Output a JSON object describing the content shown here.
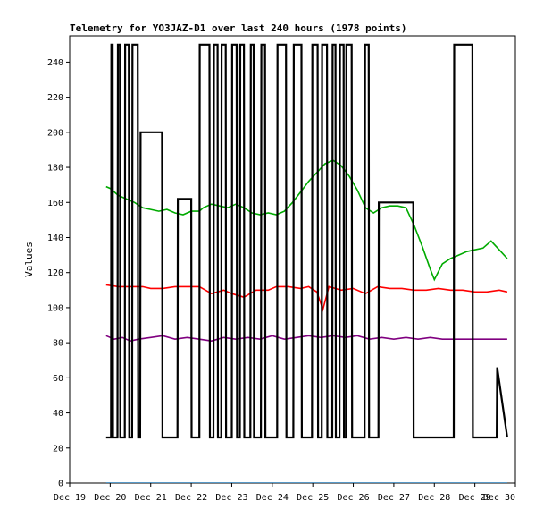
{
  "chart_data": {
    "type": "line",
    "title": "Telemetry for YO3JAZ-D1 over last 240 hours (1978 points)",
    "xlabel": "",
    "ylabel": "Values",
    "ylim": [
      0,
      255
    ],
    "grid": false,
    "legend": "none",
    "x_tick_labels": [
      "Dec 19",
      "Dec 20",
      "Dec 21",
      "Dec 22",
      "Dec 23",
      "Dec 24",
      "Dec 25",
      "Dec 26",
      "Dec 27",
      "Dec 28",
      "Dec 29",
      "Dec 30"
    ],
    "y_ticks": [
      0,
      20,
      40,
      60,
      80,
      100,
      120,
      140,
      160,
      180,
      200,
      220,
      240
    ],
    "series": [
      {
        "color": "#00aa00",
        "x": [
          19.9,
          20.0,
          20.1,
          20.2,
          20.4,
          20.6,
          20.8,
          21.0,
          21.2,
          21.4,
          21.6,
          21.8,
          22.0,
          22.2,
          22.3,
          22.5,
          22.7,
          22.9,
          23.1,
          23.3,
          23.5,
          23.7,
          23.9,
          24.1,
          24.3,
          24.5,
          24.7,
          24.9,
          25.1,
          25.3,
          25.5,
          25.7,
          25.9,
          26.1,
          26.3,
          26.5,
          26.7,
          26.9,
          27.1,
          27.3,
          27.5,
          27.7,
          27.9,
          28.0,
          28.2,
          28.4,
          28.6,
          28.8,
          29.0,
          29.2,
          29.4,
          29.6,
          29.8
        ],
        "values": [
          169,
          168,
          166,
          164,
          162,
          160,
          157,
          156,
          155,
          156,
          154,
          153,
          155,
          155,
          157,
          159,
          158,
          157,
          159,
          157,
          154,
          153,
          154,
          153,
          155,
          160,
          166,
          172,
          177,
          182,
          184,
          181,
          175,
          167,
          157,
          154,
          157,
          158,
          158,
          157,
          147,
          135,
          122,
          116,
          125,
          128,
          130,
          132,
          133,
          134,
          138,
          133,
          128
        ]
      },
      {
        "color": "#ff0000",
        "x": [
          19.9,
          20.2,
          20.5,
          20.8,
          21.0,
          21.3,
          21.6,
          21.9,
          22.2,
          22.5,
          22.8,
          23.0,
          23.3,
          23.6,
          23.9,
          24.1,
          24.4,
          24.7,
          24.9,
          25.1,
          25.25,
          25.4,
          25.7,
          26.0,
          26.3,
          26.6,
          26.9,
          27.2,
          27.5,
          27.8,
          28.1,
          28.4,
          28.7,
          29.0,
          29.3,
          29.6,
          29.8
        ],
        "values": [
          113,
          112,
          112,
          112,
          111,
          111,
          112,
          112,
          112,
          108,
          110,
          108,
          106,
          110,
          110,
          112,
          112,
          111,
          112,
          109,
          99,
          112,
          110,
          111,
          108,
          112,
          111,
          111,
          110,
          110,
          111,
          110,
          110,
          109,
          109,
          110,
          109
        ]
      },
      {
        "color": "#800080",
        "x": [
          19.9,
          20.1,
          20.3,
          20.5,
          20.7,
          21.0,
          21.3,
          21.6,
          21.9,
          22.2,
          22.5,
          22.8,
          23.1,
          23.4,
          23.7,
          24.0,
          24.3,
          24.6,
          24.9,
          25.2,
          25.5,
          25.8,
          26.1,
          26.4,
          26.7,
          27.0,
          27.3,
          27.6,
          27.9,
          28.2,
          28.5,
          28.8,
          29.1,
          29.4,
          29.8
        ],
        "values": [
          84,
          82,
          83,
          81,
          82,
          83,
          84,
          82,
          83,
          82,
          81,
          83,
          82,
          83,
          82,
          84,
          82,
          83,
          84,
          83,
          84,
          83,
          84,
          82,
          83,
          82,
          83,
          82,
          83,
          82,
          82,
          82,
          82,
          82,
          82
        ]
      },
      {
        "color": "#000000",
        "x": [
          19.9,
          20.02,
          20.03,
          20.06,
          20.07,
          20.18,
          20.19,
          20.24,
          20.25,
          20.36,
          20.37,
          20.46,
          20.47,
          20.54,
          20.55,
          20.68,
          20.69,
          20.74,
          20.75,
          21.28,
          21.29,
          21.66,
          21.67,
          22.0,
          22.01,
          22.2,
          22.21,
          22.45,
          22.46,
          22.55,
          22.56,
          22.65,
          22.66,
          22.74,
          22.75,
          22.85,
          22.86,
          23.0,
          23.01,
          23.12,
          23.13,
          23.2,
          23.21,
          23.3,
          23.31,
          23.46,
          23.47,
          23.54,
          23.55,
          23.72,
          23.73,
          23.82,
          23.83,
          24.12,
          24.13,
          24.34,
          24.35,
          24.52,
          24.53,
          24.72,
          24.73,
          24.98,
          24.99,
          25.12,
          25.13,
          25.22,
          25.23,
          25.35,
          25.36,
          25.48,
          25.49,
          25.56,
          25.57,
          25.66,
          25.67,
          25.76,
          25.77,
          25.82,
          25.83,
          25.96,
          25.97,
          26.28,
          26.29,
          26.38,
          26.39,
          26.62,
          26.63,
          27.48,
          27.49,
          28.48,
          28.49,
          28.94,
          28.95,
          29.54,
          29.55,
          29.8
        ],
        "values": [
          26,
          26,
          250,
          250,
          26,
          26,
          250,
          250,
          26,
          26,
          250,
          250,
          26,
          26,
          250,
          250,
          26,
          26,
          200,
          200,
          26,
          26,
          162,
          162,
          26,
          26,
          250,
          250,
          26,
          26,
          250,
          250,
          26,
          26,
          250,
          250,
          26,
          26,
          250,
          250,
          26,
          26,
          250,
          250,
          26,
          26,
          250,
          250,
          26,
          26,
          250,
          250,
          26,
          26,
          250,
          250,
          26,
          26,
          250,
          250,
          26,
          26,
          250,
          250,
          26,
          26,
          250,
          250,
          26,
          26,
          250,
          250,
          26,
          26,
          250,
          250,
          26,
          26,
          250,
          250,
          26,
          26,
          250,
          250,
          26,
          26,
          160,
          160,
          26,
          26,
          250,
          250,
          26,
          26,
          66,
          26
        ]
      },
      {
        "color": "#1f77b4",
        "x": [
          19.9,
          29.8
        ],
        "values": [
          0,
          0
        ]
      }
    ]
  }
}
